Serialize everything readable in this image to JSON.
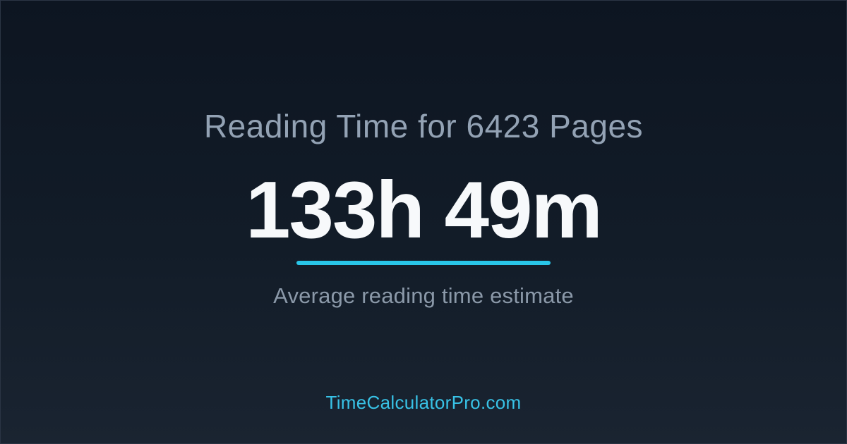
{
  "card": {
    "title": "Reading Time for 6423 Pages",
    "value": "133h 49m",
    "subtitle": "Average reading time estimate",
    "site": "TimeCalculatorPro.com"
  },
  "colors": {
    "background_top": "#0d1521",
    "background_mid": "#121c28",
    "background_bottom": "#1a2431",
    "border": "#2b3544",
    "title_text": "#93a2b4",
    "value_text": "#f7f9fb",
    "accent": "#29c6e8",
    "subtitle_text": "#8b99a9",
    "footer_link": "#38c2e6"
  }
}
